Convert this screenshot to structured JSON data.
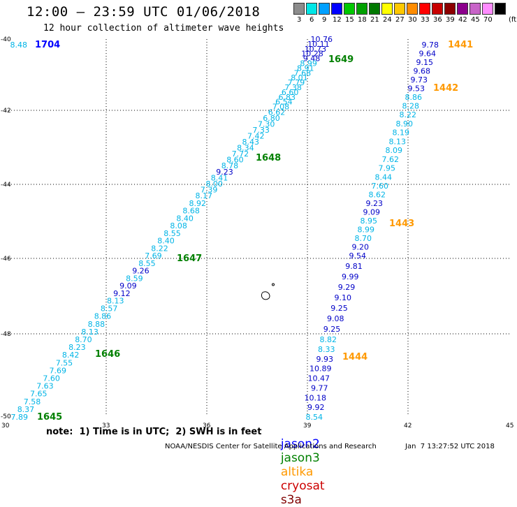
{
  "header": {
    "title": "12:00 – 23:59 UTC 01/06/2018",
    "subtitle": "12 hour collection of altimeter wave heights"
  },
  "scale": {
    "unit": "(ft)",
    "swatches": [
      {
        "label": "3",
        "color": "#8c8c8c"
      },
      {
        "label": "6",
        "color": "#00e6e6"
      },
      {
        "label": "9",
        "color": "#00a0ff"
      },
      {
        "label": "12",
        "color": "#0000ff"
      },
      {
        "label": "15",
        "color": "#00c800"
      },
      {
        "label": "18",
        "color": "#00a000"
      },
      {
        "label": "21",
        "color": "#007800"
      },
      {
        "label": "24",
        "color": "#ffff00"
      },
      {
        "label": "27",
        "color": "#ffc800"
      },
      {
        "label": "30",
        "color": "#ff8c00"
      },
      {
        "label": "33",
        "color": "#ff0000"
      },
      {
        "label": "36",
        "color": "#c80000"
      },
      {
        "label": "39",
        "color": "#8c0000"
      },
      {
        "label": "42",
        "color": "#8c008c"
      },
      {
        "label": "45",
        "color": "#c864c8"
      },
      {
        "label": "70",
        "color": "#ff8cff"
      },
      {
        "label": "",
        "color": "#000000"
      }
    ]
  },
  "axes": {
    "lat_labels": [
      "-40",
      "-42",
      "-44",
      "-46",
      "-48",
      "-50"
    ],
    "lon_labels": [
      "30",
      "33",
      "36",
      "39",
      "42",
      "45"
    ]
  },
  "colors": {
    "light": "#00b4e6",
    "dark": "#0000c8",
    "jason2": "#0000ff",
    "jason3": "#008000",
    "altika": "#ff9900",
    "cryosat": "#cc0000",
    "s3a": "#800000"
  },
  "tracks": {
    "west": [
      "10.76",
      "10.11",
      "10.73",
      "10.28",
      "9.48",
      "8.99",
      "8.91",
      "7.68",
      "8.01",
      "7.79",
      "7.38",
      "6.60",
      "6.83",
      "6.54",
      "7.08",
      "6.62",
      "6.80",
      "7.30",
      "7.33",
      "7.42",
      "8.43",
      "8.34",
      "7.72",
      "8.60",
      "8.78",
      "9.23",
      "8.41",
      "8.00",
      "7.39",
      "8.17",
      "8.92",
      "8.68",
      "8.40",
      "8.08",
      "8.55",
      "8.40",
      "8.22",
      "7.69",
      "8.55",
      "9.26",
      "8.59",
      "9.09",
      "9.12",
      "8.13",
      "8.57",
      "8.86",
      "8.88",
      "8.13",
      "8.70",
      "8.23",
      "8.42",
      "7.55",
      "7.69",
      "7.60",
      "7.63",
      "7.65",
      "7.58",
      "8.37",
      "7.89",
      "8.48"
    ],
    "east": [
      "9.78",
      "9.64",
      "9.15",
      "9.68",
      "9.73",
      "9.53",
      "8.86",
      "8.28",
      "8.22",
      "8.90",
      "8.19",
      "8.13",
      "8.09",
      "7.62",
      "7.95",
      "8.44",
      "7.60",
      "8.62",
      "9.23",
      "9.09",
      "8.95",
      "8.99",
      "8.70",
      "9.20",
      "9.54",
      "9.81",
      "9.99",
      "9.29",
      "9.10",
      "9.25",
      "9.08",
      "9.25",
      "8.82",
      "8.33",
      "9.93",
      "10.89",
      "10.47",
      "9.77",
      "10.18",
      "9.92",
      "8.54"
    ]
  },
  "times": [
    {
      "label": "1704",
      "sat": "jason2"
    },
    {
      "label": "1649",
      "sat": "jason3"
    },
    {
      "label": "1648",
      "sat": "jason3"
    },
    {
      "label": "1647",
      "sat": "jason3"
    },
    {
      "label": "1646",
      "sat": "jason3"
    },
    {
      "label": "1645",
      "sat": "jason3"
    },
    {
      "label": "1441",
      "sat": "altika"
    },
    {
      "label": "1442",
      "sat": "altika"
    },
    {
      "label": "1443",
      "sat": "altika"
    },
    {
      "label": "1444",
      "sat": "altika"
    }
  ],
  "footer": {
    "note": "note:  1) Time is in UTC;  2) SWH is in feet",
    "legend": {
      "jason2": "jason2",
      "jason3": "jason3",
      "altika": "altika",
      "cryosat": "cryosat",
      "s3a": "s3a"
    },
    "credit": "NOAA/NESDIS Center for Satellite Applications and Research",
    "timestamp": "Jan  7 13:27:52 UTC 2018"
  }
}
